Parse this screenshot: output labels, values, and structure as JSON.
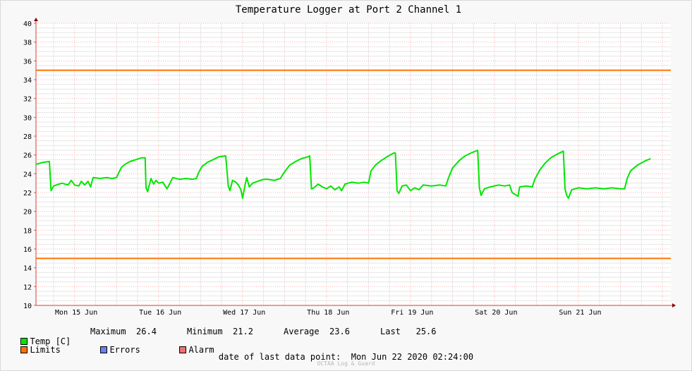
{
  "chart_data": {
    "type": "line",
    "title": "Temperature Logger at Port 2 Channel 1",
    "xlabel": "",
    "ylabel": "",
    "ylim": [
      10,
      40
    ],
    "y_ticks": [
      10,
      12,
      14,
      16,
      18,
      20,
      22,
      24,
      26,
      28,
      30,
      32,
      34,
      36,
      38,
      40
    ],
    "x_tick_labels": [
      "Mon 15 Jun",
      "Tue 16 Jun",
      "Wed 17 Jun",
      "Thu 18 Jun",
      "Fri 19 Jun",
      "Sat 20 Jun",
      "Sun 21 Jun"
    ],
    "x_unit": "days from Mon 15 Jun 00:00",
    "xlim": [
      -0.46,
      7.1
    ],
    "grid": true,
    "series": [
      {
        "name": "Temp [C]",
        "color": "#00e600",
        "points": [
          [
            -0.46,
            25.0
          ],
          [
            -0.38,
            25.2
          ],
          [
            -0.3,
            25.3
          ],
          [
            -0.28,
            22.2
          ],
          [
            -0.25,
            22.7
          ],
          [
            -0.22,
            22.8
          ],
          [
            -0.15,
            23.0
          ],
          [
            -0.08,
            22.8
          ],
          [
            -0.04,
            23.3
          ],
          [
            0.0,
            22.8
          ],
          [
            0.05,
            22.7
          ],
          [
            0.08,
            23.2
          ],
          [
            0.12,
            22.8
          ],
          [
            0.16,
            23.2
          ],
          [
            0.19,
            22.6
          ],
          [
            0.22,
            23.6
          ],
          [
            0.3,
            23.5
          ],
          [
            0.38,
            23.6
          ],
          [
            0.45,
            23.5
          ],
          [
            0.5,
            23.6
          ],
          [
            0.53,
            24.2
          ],
          [
            0.56,
            24.7
          ],
          [
            0.6,
            25.0
          ],
          [
            0.66,
            25.3
          ],
          [
            0.73,
            25.5
          ],
          [
            0.8,
            25.7
          ],
          [
            0.84,
            25.7
          ],
          [
            0.85,
            22.5
          ],
          [
            0.87,
            22.1
          ],
          [
            0.89,
            22.8
          ],
          [
            0.91,
            23.5
          ],
          [
            0.94,
            22.9
          ],
          [
            0.97,
            23.3
          ],
          [
            1.0,
            23.0
          ],
          [
            1.05,
            23.1
          ],
          [
            1.1,
            22.4
          ],
          [
            1.13,
            22.9
          ],
          [
            1.17,
            23.6
          ],
          [
            1.25,
            23.4
          ],
          [
            1.33,
            23.5
          ],
          [
            1.4,
            23.4
          ],
          [
            1.45,
            23.5
          ],
          [
            1.48,
            24.2
          ],
          [
            1.52,
            24.8
          ],
          [
            1.58,
            25.2
          ],
          [
            1.65,
            25.5
          ],
          [
            1.72,
            25.8
          ],
          [
            1.8,
            25.9
          ],
          [
            1.83,
            22.7
          ],
          [
            1.85,
            22.2
          ],
          [
            1.88,
            23.3
          ],
          [
            1.92,
            23.1
          ],
          [
            1.95,
            22.8
          ],
          [
            1.98,
            22.3
          ],
          [
            2.0,
            21.4
          ],
          [
            2.03,
            22.8
          ],
          [
            2.05,
            23.6
          ],
          [
            2.08,
            22.6
          ],
          [
            2.12,
            23.0
          ],
          [
            2.18,
            23.2
          ],
          [
            2.25,
            23.4
          ],
          [
            2.3,
            23.4
          ],
          [
            2.38,
            23.3
          ],
          [
            2.45,
            23.5
          ],
          [
            2.5,
            24.2
          ],
          [
            2.56,
            24.9
          ],
          [
            2.63,
            25.3
          ],
          [
            2.7,
            25.6
          ],
          [
            2.78,
            25.8
          ],
          [
            2.8,
            25.9
          ],
          [
            2.82,
            22.4
          ],
          [
            2.85,
            22.5
          ],
          [
            2.9,
            22.9
          ],
          [
            2.95,
            22.6
          ],
          [
            3.0,
            22.4
          ],
          [
            3.05,
            22.7
          ],
          [
            3.1,
            22.3
          ],
          [
            3.15,
            22.6
          ],
          [
            3.18,
            22.2
          ],
          [
            3.22,
            22.9
          ],
          [
            3.3,
            23.1
          ],
          [
            3.38,
            23.0
          ],
          [
            3.45,
            23.1
          ],
          [
            3.5,
            23.0
          ],
          [
            3.53,
            24.3
          ],
          [
            3.58,
            24.9
          ],
          [
            3.65,
            25.4
          ],
          [
            3.72,
            25.8
          ],
          [
            3.8,
            26.2
          ],
          [
            3.82,
            26.2
          ],
          [
            3.84,
            22.2
          ],
          [
            3.86,
            21.9
          ],
          [
            3.9,
            22.7
          ],
          [
            3.95,
            22.8
          ],
          [
            4.0,
            22.2
          ],
          [
            4.05,
            22.5
          ],
          [
            4.1,
            22.3
          ],
          [
            4.15,
            22.8
          ],
          [
            4.25,
            22.7
          ],
          [
            4.35,
            22.8
          ],
          [
            4.42,
            22.7
          ],
          [
            4.45,
            23.5
          ],
          [
            4.5,
            24.6
          ],
          [
            4.58,
            25.4
          ],
          [
            4.65,
            25.9
          ],
          [
            4.72,
            26.2
          ],
          [
            4.8,
            26.5
          ],
          [
            4.82,
            22.5
          ],
          [
            4.84,
            21.7
          ],
          [
            4.88,
            22.4
          ],
          [
            4.95,
            22.6
          ],
          [
            5.05,
            22.8
          ],
          [
            5.12,
            22.7
          ],
          [
            5.18,
            22.8
          ],
          [
            5.21,
            22.0
          ],
          [
            5.28,
            21.6
          ],
          [
            5.3,
            22.6
          ],
          [
            5.38,
            22.7
          ],
          [
            5.45,
            22.6
          ],
          [
            5.48,
            23.4
          ],
          [
            5.54,
            24.4
          ],
          [
            5.6,
            25.1
          ],
          [
            5.67,
            25.7
          ],
          [
            5.75,
            26.1
          ],
          [
            5.82,
            26.4
          ],
          [
            5.84,
            22.4
          ],
          [
            5.86,
            21.7
          ],
          [
            5.88,
            21.4
          ],
          [
            5.92,
            22.3
          ],
          [
            6.0,
            22.5
          ],
          [
            6.1,
            22.4
          ],
          [
            6.2,
            22.5
          ],
          [
            6.3,
            22.4
          ],
          [
            6.4,
            22.5
          ],
          [
            6.5,
            22.4
          ],
          [
            6.55,
            22.4
          ],
          [
            6.58,
            23.5
          ],
          [
            6.62,
            24.3
          ],
          [
            6.7,
            24.9
          ],
          [
            6.8,
            25.4
          ],
          [
            6.86,
            25.6
          ]
        ]
      },
      {
        "name": "Limits",
        "color": "#ff7200",
        "levels": [
          35,
          15
        ]
      }
    ]
  },
  "legend": {
    "temp": {
      "label": "Temp [C]",
      "color": "#00e600",
      "max_label": "Maximum",
      "max_value": "26.4",
      "min_label": "Minimum",
      "min_value": "21.2",
      "avg_label": "Average",
      "avg_value": "23.6",
      "last_label": "Last",
      "last_value": "25.6"
    },
    "limits": {
      "label": "Limits",
      "color": "#ff7200"
    },
    "errors": {
      "label": "Errors",
      "color": "#6e7ff0"
    },
    "alarm": {
      "label": "Alarm",
      "color": "#f07070"
    }
  },
  "footer": {
    "date_label": "date of last data point:",
    "date_value": "Mon Jun 22 2020 02:24:00",
    "watermark": "OCTAA Log & Guard"
  }
}
